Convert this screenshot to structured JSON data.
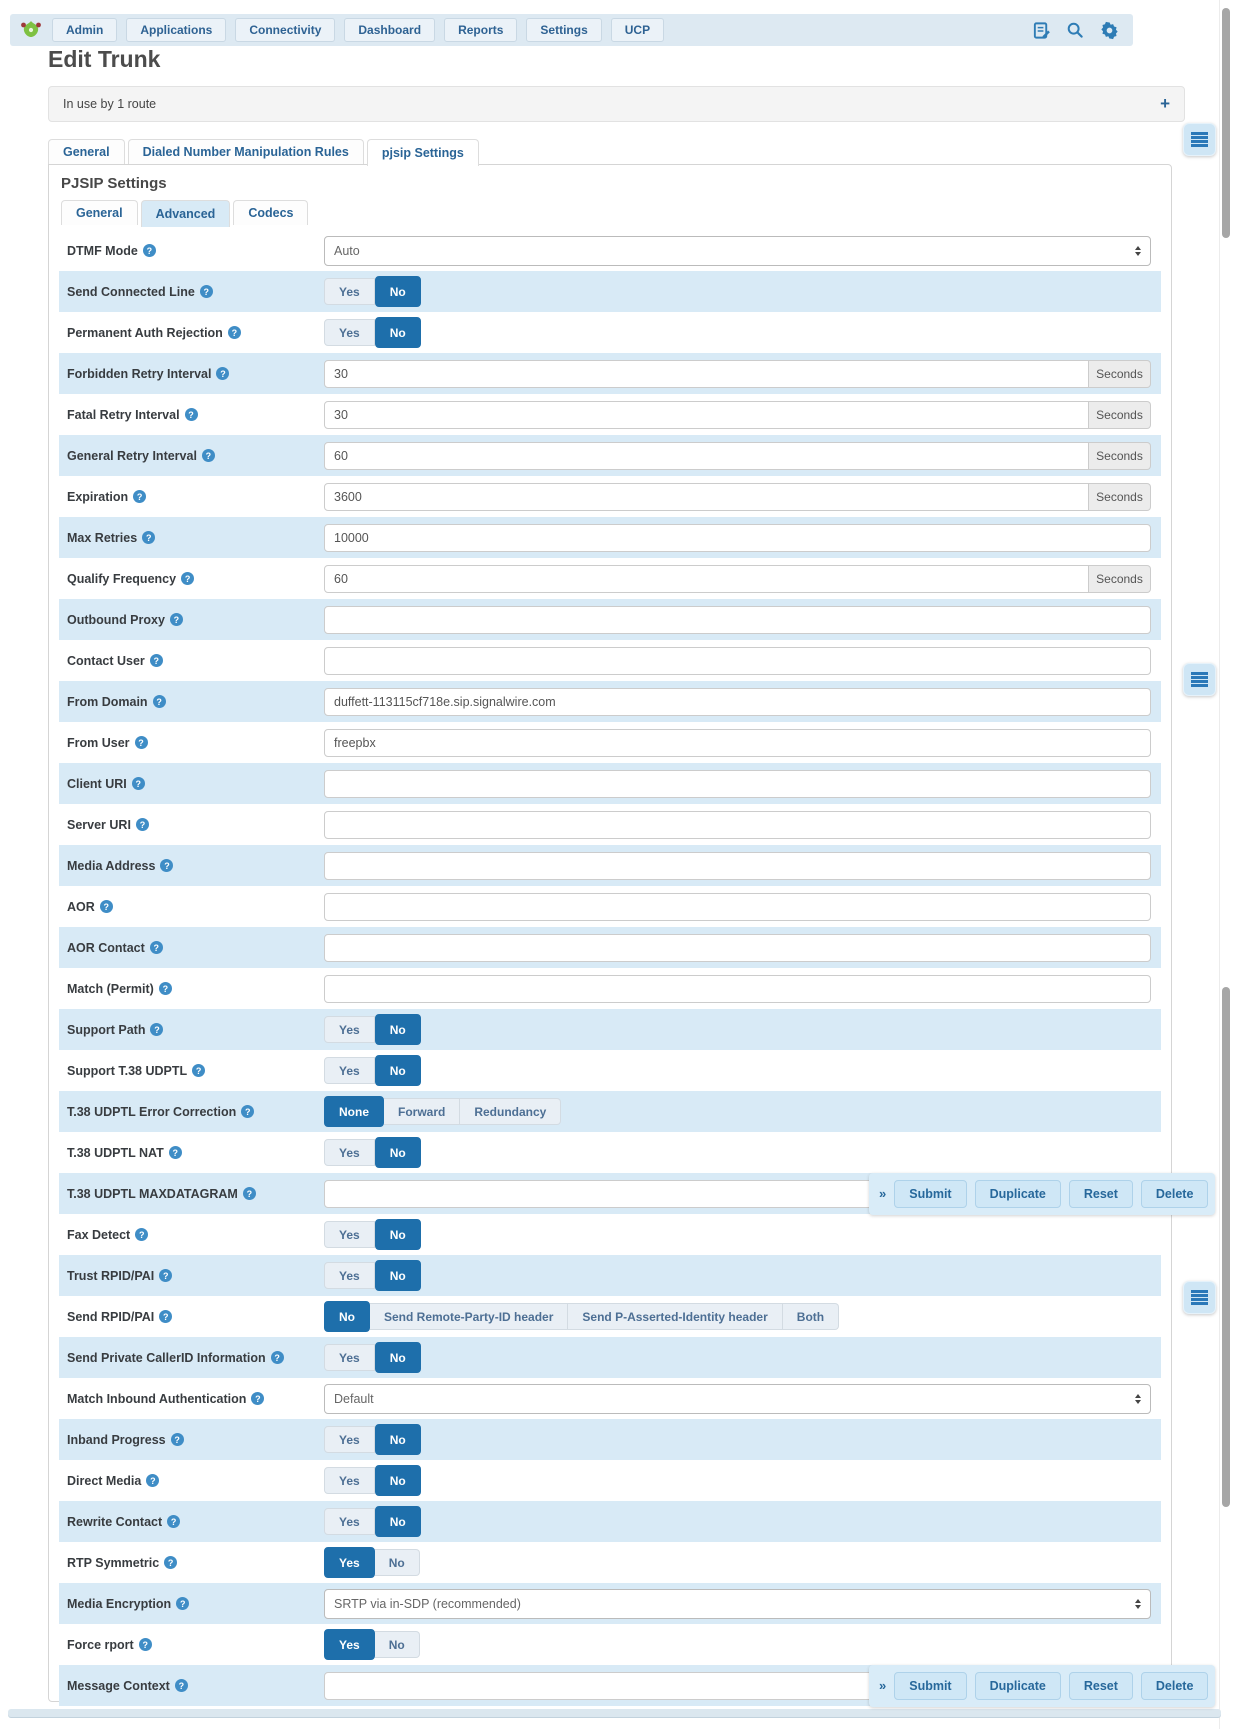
{
  "navbar": {
    "menu_items": [
      "Admin",
      "Applications",
      "Connectivity",
      "Dashboard",
      "Reports",
      "Settings",
      "UCP"
    ],
    "right_icons": [
      "notes-icon",
      "search-icon",
      "gear-icon"
    ]
  },
  "page": {
    "title": "Edit Trunk",
    "usage_notice": "In use by 1 route",
    "expand_glyph": "+"
  },
  "tabs": {
    "main": [
      "General",
      "Dialed Number Manipulation Rules",
      "pjsip Settings"
    ],
    "active_main": "pjsip Settings"
  },
  "pjsip": {
    "section_title": "PJSIP Settings",
    "sub_tabs": [
      "General",
      "Advanced",
      "Codecs"
    ],
    "active_sub": "Advanced"
  },
  "toolbar": {
    "chevron": "»",
    "buttons": [
      "Submit",
      "Duplicate",
      "Reset",
      "Delete"
    ]
  },
  "form": {
    "rows": [
      {
        "label": "DTMF Mode",
        "type": "select",
        "value": "Auto"
      },
      {
        "label": "Send Connected Line",
        "type": "toggle",
        "options": [
          "Yes",
          "No"
        ],
        "active": "No"
      },
      {
        "label": "Permanent Auth Rejection",
        "type": "toggle",
        "options": [
          "Yes",
          "No"
        ],
        "active": "No"
      },
      {
        "label": "Forbidden Retry Interval",
        "type": "input_addon",
        "value": "30",
        "addon": "Seconds"
      },
      {
        "label": "Fatal Retry Interval",
        "type": "input_addon",
        "value": "30",
        "addon": "Seconds"
      },
      {
        "label": "General Retry Interval",
        "type": "input_addon",
        "value": "60",
        "addon": "Seconds"
      },
      {
        "label": "Expiration",
        "type": "input_addon",
        "value": "3600",
        "addon": "Seconds"
      },
      {
        "label": "Max Retries",
        "type": "input",
        "value": "10000"
      },
      {
        "label": "Qualify Frequency",
        "type": "input_addon",
        "value": "60",
        "addon": "Seconds"
      },
      {
        "label": "Outbound Proxy",
        "type": "input",
        "value": ""
      },
      {
        "label": "Contact User",
        "type": "input",
        "value": ""
      },
      {
        "label": "From Domain",
        "type": "input",
        "value": "duffett-113115cf718e.sip.signalwire.com"
      },
      {
        "label": "From User",
        "type": "input",
        "value": "freepbx"
      },
      {
        "label": "Client URI",
        "type": "input",
        "value": ""
      },
      {
        "label": "Server URI",
        "type": "input",
        "value": ""
      },
      {
        "label": "Media Address",
        "type": "input",
        "value": ""
      },
      {
        "label": "AOR",
        "type": "input",
        "value": ""
      },
      {
        "label": "AOR Contact",
        "type": "input",
        "value": ""
      },
      {
        "label": "Match (Permit)",
        "type": "input",
        "value": ""
      },
      {
        "label": "Support Path",
        "type": "toggle",
        "options": [
          "Yes",
          "No"
        ],
        "active": "No"
      },
      {
        "label": "Support T.38 UDPTL",
        "type": "toggle",
        "options": [
          "Yes",
          "No"
        ],
        "active": "No"
      },
      {
        "label": "T.38 UDPTL Error Correction",
        "type": "btngroup",
        "options": [
          "None",
          "Forward",
          "Redundancy"
        ],
        "active": "None"
      },
      {
        "label": "T.38 UDPTL NAT",
        "type": "toggle",
        "options": [
          "Yes",
          "No"
        ],
        "active": "No"
      },
      {
        "label": "T.38 UDPTL MAXDATAGRAM",
        "type": "input",
        "value": "",
        "toolbar": true
      },
      {
        "label": "Fax Detect",
        "type": "toggle",
        "options": [
          "Yes",
          "No"
        ],
        "active": "No"
      },
      {
        "label": "Trust RPID/PAI",
        "type": "toggle",
        "options": [
          "Yes",
          "No"
        ],
        "active": "No"
      },
      {
        "label": "Send RPID/PAI",
        "type": "btngroup",
        "options": [
          "No",
          "Send Remote-Party-ID header",
          "Send P-Asserted-Identity header",
          "Both"
        ],
        "active": "No"
      },
      {
        "label": "Send Private CallerID Information",
        "type": "toggle",
        "options": [
          "Yes",
          "No"
        ],
        "active": "No"
      },
      {
        "label": "Match Inbound Authentication",
        "type": "select",
        "value": "Default"
      },
      {
        "label": "Inband Progress",
        "type": "toggle",
        "options": [
          "Yes",
          "No"
        ],
        "active": "No"
      },
      {
        "label": "Direct Media",
        "type": "toggle",
        "options": [
          "Yes",
          "No"
        ],
        "active": "No"
      },
      {
        "label": "Rewrite Contact",
        "type": "toggle",
        "options": [
          "Yes",
          "No"
        ],
        "active": "No"
      },
      {
        "label": "RTP Symmetric",
        "type": "toggle",
        "options": [
          "Yes",
          "No"
        ],
        "active": "Yes"
      },
      {
        "label": "Media Encryption",
        "type": "select",
        "value": "SRTP via in-SDP (recommended)"
      },
      {
        "label": "Force rport",
        "type": "toggle",
        "options": [
          "Yes",
          "No"
        ],
        "active": "Yes"
      },
      {
        "label": "Message Context",
        "type": "input",
        "value": "",
        "toolbar": true
      }
    ]
  },
  "colors": {
    "accent_blue": "#1e6fab",
    "row_alt_blue": "#d8eaf6",
    "link_blue": "#2a6496"
  }
}
